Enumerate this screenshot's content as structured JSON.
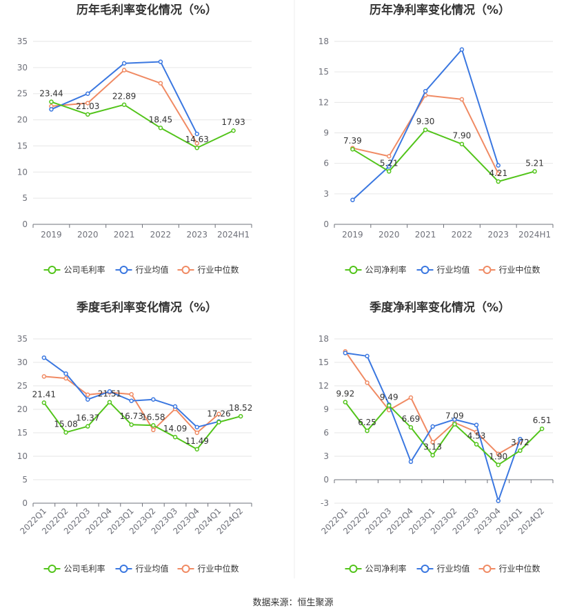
{
  "colors": {
    "company": "#52c41a",
    "industry_avg": "#3a77e0",
    "industry_median": "#f08a63",
    "grid": "#e6e6e6",
    "axis": "#6e7079",
    "text": "#333333"
  },
  "legend_labels": {
    "gross": [
      "公司毛利率",
      "行业均值",
      "行业中位数"
    ],
    "net": [
      "公司净利率",
      "行业均值",
      "行业中位数"
    ]
  },
  "source_text": "数据来源：恒生聚源",
  "chart_data": [
    {
      "type": "line",
      "title": "历年毛利率变化情况（%）",
      "categories": [
        "2019",
        "2020",
        "2021",
        "2022",
        "2023",
        "2024H1"
      ],
      "ylim": [
        0,
        35
      ],
      "yticks": [
        0,
        5,
        10,
        15,
        20,
        25,
        30,
        35
      ],
      "series": [
        {
          "name": "公司毛利率",
          "values": [
            23.44,
            21.03,
            22.89,
            18.45,
            14.63,
            17.93
          ]
        },
        {
          "name": "行业均值",
          "values": [
            22.0,
            25.0,
            30.8,
            31.1,
            17.3,
            null
          ]
        },
        {
          "name": "行业中位数",
          "values": [
            22.6,
            23.2,
            29.5,
            27.0,
            15.5,
            null
          ]
        }
      ],
      "data_labels": [
        "23.44",
        "21.03",
        "22.89",
        "18.45",
        "14.63",
        "17.93"
      ],
      "grid": true,
      "legend": "bottom"
    },
    {
      "type": "line",
      "title": "历年净利率变化情况（%）",
      "categories": [
        "2019",
        "2020",
        "2021",
        "2022",
        "2023",
        "2024H1"
      ],
      "ylim": [
        0,
        18
      ],
      "yticks": [
        0,
        3,
        6,
        9,
        12,
        15,
        18
      ],
      "series": [
        {
          "name": "公司净利率",
          "values": [
            7.39,
            5.21,
            9.3,
            7.9,
            4.21,
            5.21
          ]
        },
        {
          "name": "行业均值",
          "values": [
            2.4,
            5.7,
            13.1,
            17.2,
            5.8,
            null
          ]
        },
        {
          "name": "行业中位数",
          "values": [
            7.5,
            6.7,
            12.7,
            12.3,
            5.0,
            null
          ]
        }
      ],
      "data_labels": [
        "7.39",
        "5.21",
        "9.30",
        "7.90",
        "4.21",
        "5.21"
      ],
      "grid": true,
      "legend": "bottom"
    },
    {
      "type": "line",
      "title": "季度毛利率变化情况（%）",
      "categories": [
        "2022Q1",
        "2022Q2",
        "2022Q3",
        "2022Q4",
        "2023Q1",
        "2023Q2",
        "2023Q3",
        "2023Q4",
        "2024Q1",
        "2024Q2"
      ],
      "ylim": [
        0,
        35
      ],
      "yticks": [
        0,
        5,
        10,
        15,
        20,
        25,
        30,
        35
      ],
      "series": [
        {
          "name": "公司毛利率",
          "values": [
            21.41,
            15.08,
            16.37,
            21.51,
            16.73,
            16.58,
            14.09,
            11.49,
            17.26,
            18.52
          ]
        },
        {
          "name": "行业均值",
          "values": [
            31.0,
            27.6,
            22.1,
            23.8,
            21.8,
            22.1,
            20.6,
            16.2,
            17.4,
            null
          ]
        },
        {
          "name": "行业中位数",
          "values": [
            27.0,
            26.6,
            23.1,
            23.6,
            23.2,
            15.6,
            20.1,
            15.0,
            19.0,
            null
          ]
        }
      ],
      "data_labels": [
        "21.41",
        "15.08",
        "16.37",
        "21.51",
        "16.73",
        "16.58",
        "14.09",
        "11.49",
        "17.26",
        "18.52"
      ],
      "grid": true,
      "legend": "bottom"
    },
    {
      "type": "line",
      "title": "季度净利率变化情况（%）",
      "categories": [
        "2022Q1",
        "2022Q2",
        "2022Q3",
        "2022Q4",
        "2023Q1",
        "2023Q2",
        "2023Q3",
        "2023Q4",
        "2024Q1",
        "2024Q2"
      ],
      "ylim": [
        -3,
        18
      ],
      "yticks": [
        -3,
        0,
        3,
        6,
        9,
        12,
        15,
        18
      ],
      "series": [
        {
          "name": "公司净利率",
          "values": [
            9.92,
            6.25,
            9.49,
            6.69,
            3.13,
            7.09,
            4.53,
            1.9,
            3.72,
            6.51
          ]
        },
        {
          "name": "行业均值",
          "values": [
            16.2,
            15.8,
            9.6,
            2.3,
            6.8,
            7.7,
            7.0,
            -2.7,
            5.2,
            null
          ]
        },
        {
          "name": "行业中位数",
          "values": [
            16.4,
            12.4,
            8.9,
            10.5,
            4.8,
            7.3,
            6.1,
            3.3,
            4.9,
            null
          ]
        }
      ],
      "data_labels": [
        "9.92",
        "6.25",
        "9.49",
        "6.69",
        "3.13",
        "7.09",
        "4.53",
        "1.90",
        "3.72",
        "6.51"
      ],
      "grid": true,
      "legend": "bottom"
    }
  ]
}
